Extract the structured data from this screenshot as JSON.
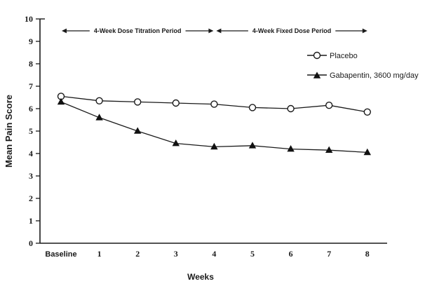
{
  "chart_data": {
    "type": "line",
    "title": "",
    "xlabel": "Weeks",
    "ylabel": "Mean Pain Score",
    "ylim": [
      0,
      10
    ],
    "yticks": [
      0,
      1,
      2,
      3,
      4,
      5,
      6,
      7,
      8,
      9,
      10
    ],
    "grid": false,
    "legend_position": "upper-right",
    "categories": [
      "Baseline",
      "1",
      "2",
      "3",
      "4",
      "5",
      "6",
      "7",
      "8"
    ],
    "series": [
      {
        "name": "Placebo",
        "marker": "circle-open",
        "values": [
          6.55,
          6.35,
          6.3,
          6.25,
          6.2,
          6.05,
          6.0,
          6.15,
          5.85
        ]
      },
      {
        "name": "Gabapentin, 3600 mg/day",
        "marker": "triangle-filled",
        "values": [
          6.3,
          5.6,
          5.0,
          4.45,
          4.3,
          4.35,
          4.2,
          4.15,
          4.05
        ]
      }
    ],
    "annotations": [
      {
        "label": "4-Week Dose Titration Period",
        "from_category": "Baseline",
        "to_category": "4"
      },
      {
        "label": "4-Week Fixed Dose Period",
        "from_category": "4",
        "to_category": "8"
      }
    ],
    "colors": {
      "line": "#1a1a1a",
      "marker_fill": "#111111",
      "marker_open_fill": "#ffffff",
      "background": "#ffffff"
    }
  }
}
